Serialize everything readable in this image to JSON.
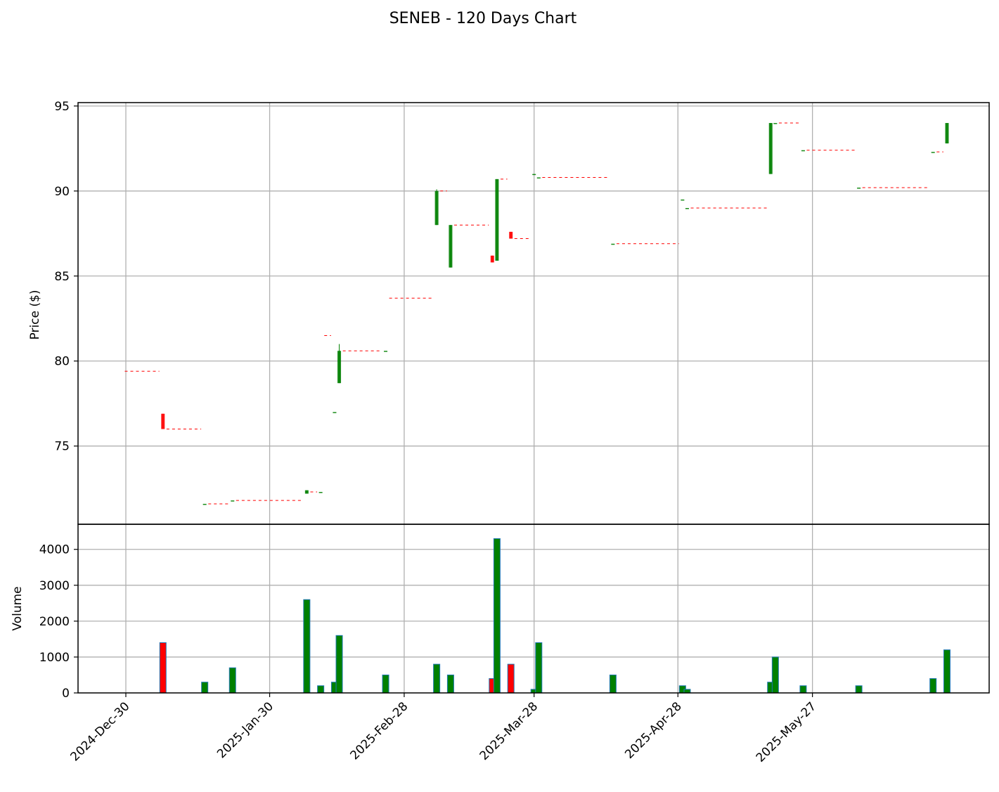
{
  "chart_data": {
    "type": "candlestick",
    "title": "SENEB - 120 Days Chart",
    "ylabel_price": "Price ($)",
    "ylabel_volume": "Volume",
    "up_color": "#008000",
    "down_color": "#ff0000",
    "grid": true,
    "date_range": [
      "2024-12-30",
      "2025-06-25"
    ],
    "xticks": [
      {
        "date": "2024-12-30",
        "label": "2024-Dec-30"
      },
      {
        "date": "2025-01-30",
        "label": "2025-Jan-30"
      },
      {
        "date": "2025-02-28",
        "label": "2025-Feb-28"
      },
      {
        "date": "2025-03-28",
        "label": "2025-Mar-28"
      },
      {
        "date": "2025-04-28",
        "label": "2025-Apr-28"
      },
      {
        "date": "2025-05-27",
        "label": "2025-May-27"
      }
    ],
    "price_ylim": [
      70.4,
      95.2
    ],
    "price_yticks": [
      75,
      80,
      85,
      90,
      95
    ],
    "volume_ylim": [
      0,
      4700
    ],
    "volume_yticks": [
      0,
      1000,
      2000,
      3000,
      4000
    ],
    "candles": [
      {
        "date": "2025-01-07",
        "open": 76.9,
        "high": 76.9,
        "low": 76.0,
        "close": 76.0,
        "volume": 1400
      },
      {
        "date": "2025-01-16",
        "open": 71.6,
        "high": 71.6,
        "low": 71.6,
        "close": 71.6,
        "volume": 300
      },
      {
        "date": "2025-01-22",
        "open": 71.8,
        "high": 71.8,
        "low": 71.8,
        "close": 71.8,
        "volume": 700
      },
      {
        "date": "2025-02-07",
        "open": 72.2,
        "high": 72.4,
        "low": 72.2,
        "close": 72.4,
        "volume": 2600
      },
      {
        "date": "2025-02-10",
        "open": 72.3,
        "high": 72.3,
        "low": 72.3,
        "close": 72.3,
        "volume": 200
      },
      {
        "date": "2025-02-13",
        "open": 77.0,
        "high": 77.0,
        "low": 77.0,
        "close": 77.0,
        "volume": 300
      },
      {
        "date": "2025-02-14",
        "open": 78.7,
        "high": 81.0,
        "low": 78.7,
        "close": 80.6,
        "volume": 1600
      },
      {
        "date": "2025-02-24",
        "open": 80.6,
        "high": 80.6,
        "low": 80.6,
        "close": 80.6,
        "volume": 500
      },
      {
        "date": "2025-03-07",
        "open": 88.0,
        "high": 90.1,
        "low": 88.0,
        "close": 90.0,
        "volume": 800
      },
      {
        "date": "2025-03-10",
        "open": 85.5,
        "high": 88.0,
        "low": 85.5,
        "close": 88.0,
        "volume": 500
      },
      {
        "date": "2025-03-19",
        "open": 86.2,
        "high": 86.2,
        "low": 85.8,
        "close": 85.8,
        "volume": 400
      },
      {
        "date": "2025-03-20",
        "open": 85.9,
        "high": 90.7,
        "low": 85.9,
        "close": 90.7,
        "volume": 4300
      },
      {
        "date": "2025-03-23",
        "open": 87.6,
        "high": 87.6,
        "low": 87.2,
        "close": 87.2,
        "volume": 800
      },
      {
        "date": "2025-03-28",
        "open": 91.0,
        "high": 91.0,
        "low": 91.0,
        "close": 91.0,
        "volume": 100
      },
      {
        "date": "2025-03-29",
        "open": 90.8,
        "high": 90.8,
        "low": 90.8,
        "close": 90.8,
        "volume": 1400
      },
      {
        "date": "2025-04-14",
        "open": 86.9,
        "high": 86.9,
        "low": 86.9,
        "close": 86.9,
        "volume": 500
      },
      {
        "date": "2025-04-29",
        "open": 89.5,
        "high": 89.5,
        "low": 89.5,
        "close": 89.5,
        "volume": 200
      },
      {
        "date": "2025-04-30",
        "open": 89.0,
        "high": 89.0,
        "low": 89.0,
        "close": 89.0,
        "volume": 100
      },
      {
        "date": "2025-05-18",
        "open": 91.0,
        "high": 94.0,
        "low": 91.0,
        "close": 94.0,
        "volume": 300
      },
      {
        "date": "2025-05-19",
        "open": 94.0,
        "high": 94.0,
        "low": 94.0,
        "close": 94.0,
        "volume": 1000
      },
      {
        "date": "2025-05-25",
        "open": 92.4,
        "high": 92.4,
        "low": 92.4,
        "close": 92.4,
        "volume": 200
      },
      {
        "date": "2025-06-06",
        "open": 90.2,
        "high": 90.2,
        "low": 90.2,
        "close": 90.2,
        "volume": 200
      },
      {
        "date": "2025-06-22",
        "open": 92.3,
        "high": 92.3,
        "low": 92.3,
        "close": 92.3,
        "volume": 400
      },
      {
        "date": "2025-06-25",
        "open": 92.8,
        "high": 94.0,
        "low": 92.8,
        "close": 94.0,
        "volume": 1200
      }
    ],
    "gap_lines": [
      {
        "start": "2024-12-30",
        "end": "2025-01-06",
        "value": 79.4
      },
      {
        "start": "2025-01-08",
        "end": "2025-01-15",
        "value": 76.0
      },
      {
        "start": "2025-01-17",
        "end": "2025-01-21",
        "value": 71.6
      },
      {
        "start": "2025-01-23",
        "end": "2025-02-06",
        "value": 71.8
      },
      {
        "start": "2025-02-08",
        "end": "2025-02-09",
        "value": 72.3
      },
      {
        "start": "2025-02-11",
        "end": "2025-02-12",
        "value": 81.5
      },
      {
        "start": "2025-02-15",
        "end": "2025-02-23",
        "value": 80.6
      },
      {
        "start": "2025-02-25",
        "end": "2025-03-06",
        "value": 83.7
      },
      {
        "start": "2025-03-08",
        "end": "2025-03-09",
        "value": 90.0
      },
      {
        "start": "2025-03-11",
        "end": "2025-03-18",
        "value": 88.0
      },
      {
        "start": "2025-03-21",
        "end": "2025-03-22",
        "value": 90.7
      },
      {
        "start": "2025-03-24",
        "end": "2025-03-27",
        "value": 87.2
      },
      {
        "start": "2025-03-30",
        "end": "2025-04-13",
        "value": 90.8
      },
      {
        "start": "2025-04-15",
        "end": "2025-04-28",
        "value": 86.9
      },
      {
        "start": "2025-05-01",
        "end": "2025-05-17",
        "value": 89.0
      },
      {
        "start": "2025-05-20",
        "end": "2025-05-24",
        "value": 94.0
      },
      {
        "start": "2025-05-26",
        "end": "2025-06-05",
        "value": 92.4
      },
      {
        "start": "2025-06-07",
        "end": "2025-06-21",
        "value": 90.2
      },
      {
        "start": "2025-06-23",
        "end": "2025-06-24",
        "value": 92.3
      }
    ]
  }
}
